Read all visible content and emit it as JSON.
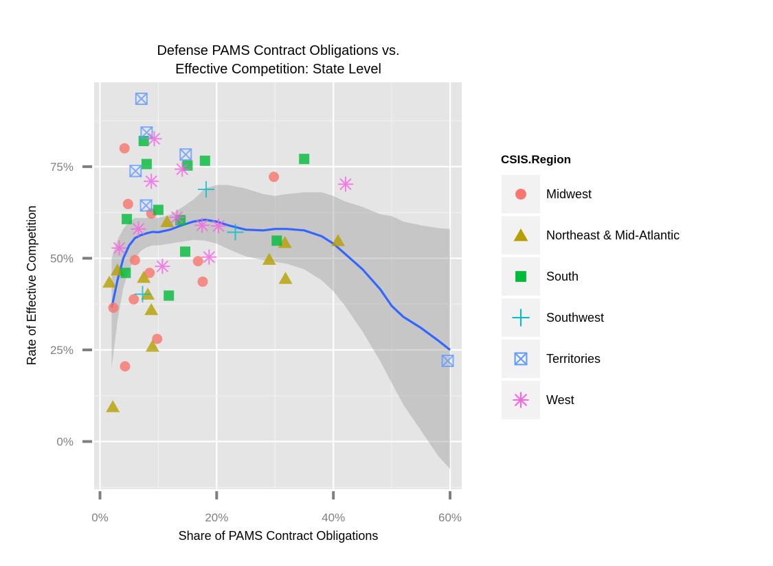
{
  "chart_data": {
    "type": "scatter",
    "title": "Defense PAMS Contract Obligations vs.\nEffective Competition: State Level",
    "title_lines": [
      "Defense PAMS Contract Obligations vs.",
      "Effective Competition: State Level"
    ],
    "xlabel": "Share of PAMS Contract Obligations",
    "ylabel": "Rate of Effective Competition",
    "xlim": [
      -0.01,
      0.62
    ],
    "ylim": [
      -0.13,
      0.98
    ],
    "x_ticks": [
      0,
      0.2,
      0.4,
      0.6
    ],
    "x_tick_labels": [
      "0%",
      "20%",
      "40%",
      "60%"
    ],
    "y_ticks": [
      0,
      0.25,
      0.5,
      0.75
    ],
    "y_tick_labels": [
      "0%",
      "25%",
      "50%",
      "75%"
    ],
    "grid": true,
    "legend_position": "right",
    "legend_title": "CSIS.Region",
    "series": [
      {
        "name": "Midwest",
        "color": "#F8766D",
        "marker": "circle",
        "points": [
          [
            0.023,
            0.365
          ],
          [
            0.042,
            0.8
          ],
          [
            0.048,
            0.648
          ],
          [
            0.058,
            0.388
          ],
          [
            0.06,
            0.495
          ],
          [
            0.043,
            0.205
          ],
          [
            0.085,
            0.46
          ],
          [
            0.088,
            0.622
          ],
          [
            0.098,
            0.28
          ],
          [
            0.168,
            0.492
          ],
          [
            0.176,
            0.436
          ],
          [
            0.298,
            0.722
          ]
        ]
      },
      {
        "name": "Northeast & Mid-Atlantic",
        "color": "#B79F00",
        "marker": "triangle",
        "points": [
          [
            0.016,
            0.435
          ],
          [
            0.03,
            0.468
          ],
          [
            0.022,
            0.095
          ],
          [
            0.075,
            0.448
          ],
          [
            0.082,
            0.402
          ],
          [
            0.088,
            0.36
          ],
          [
            0.09,
            0.26
          ],
          [
            0.115,
            0.6
          ],
          [
            0.29,
            0.497
          ],
          [
            0.317,
            0.543
          ],
          [
            0.318,
            0.445
          ],
          [
            0.408,
            0.548
          ]
        ]
      },
      {
        "name": "South",
        "color": "#00BA38",
        "marker": "square",
        "points": [
          [
            0.044,
            0.46
          ],
          [
            0.046,
            0.607
          ],
          [
            0.075,
            0.82
          ],
          [
            0.08,
            0.757
          ],
          [
            0.1,
            0.632
          ],
          [
            0.118,
            0.398
          ],
          [
            0.138,
            0.604
          ],
          [
            0.146,
            0.518
          ],
          [
            0.15,
            0.753
          ],
          [
            0.18,
            0.766
          ],
          [
            0.303,
            0.548
          ],
          [
            0.35,
            0.771
          ]
        ]
      },
      {
        "name": "Southwest",
        "color": "#00BFC4",
        "marker": "plus",
        "points": [
          [
            0.073,
            0.402
          ],
          [
            0.182,
            0.688
          ],
          [
            0.232,
            0.571
          ]
        ]
      },
      {
        "name": "Territories",
        "color": "#619CFF",
        "marker": "boxcross",
        "points": [
          [
            0.071,
            0.935
          ],
          [
            0.08,
            0.843
          ],
          [
            0.061,
            0.738
          ],
          [
            0.079,
            0.644
          ],
          [
            0.147,
            0.783
          ],
          [
            0.596,
            0.22
          ]
        ]
      },
      {
        "name": "West",
        "color": "#F564E3",
        "marker": "asterisk",
        "points": [
          [
            0.033,
            0.528
          ],
          [
            0.066,
            0.58
          ],
          [
            0.093,
            0.826
          ],
          [
            0.088,
            0.71
          ],
          [
            0.107,
            0.478
          ],
          [
            0.141,
            0.743
          ],
          [
            0.132,
            0.612
          ],
          [
            0.175,
            0.59
          ],
          [
            0.187,
            0.503
          ],
          [
            0.203,
            0.588
          ],
          [
            0.421,
            0.702
          ]
        ]
      }
    ],
    "smooth": {
      "color": "#3366FF",
      "band_color": "#999999",
      "x": [
        0.02,
        0.03,
        0.04,
        0.05,
        0.06,
        0.07,
        0.08,
        0.09,
        0.1,
        0.12,
        0.14,
        0.16,
        0.18,
        0.2,
        0.22,
        0.25,
        0.28,
        0.3,
        0.32,
        0.35,
        0.38,
        0.4,
        0.42,
        0.45,
        0.48,
        0.5,
        0.52,
        0.55,
        0.58,
        0.6
      ],
      "y": [
        0.365,
        0.44,
        0.5,
        0.535,
        0.555,
        0.563,
        0.568,
        0.572,
        0.571,
        0.578,
        0.59,
        0.6,
        0.605,
        0.6,
        0.59,
        0.578,
        0.576,
        0.58,
        0.58,
        0.576,
        0.56,
        0.54,
        0.512,
        0.47,
        0.416,
        0.37,
        0.34,
        0.31,
        0.275,
        0.25
      ],
      "lower": [
        0.2,
        0.33,
        0.42,
        0.47,
        0.5,
        0.52,
        0.53,
        0.535,
        0.535,
        0.54,
        0.545,
        0.55,
        0.548,
        0.54,
        0.525,
        0.505,
        0.495,
        0.49,
        0.485,
        0.47,
        0.44,
        0.41,
        0.37,
        0.3,
        0.22,
        0.16,
        0.1,
        0.03,
        -0.04,
        -0.075
      ],
      "upper": [
        0.5,
        0.55,
        0.58,
        0.6,
        0.61,
        0.61,
        0.61,
        0.612,
        0.61,
        0.618,
        0.638,
        0.66,
        0.69,
        0.7,
        0.7,
        0.69,
        0.675,
        0.67,
        0.675,
        0.68,
        0.68,
        0.67,
        0.655,
        0.64,
        0.62,
        0.615,
        0.6,
        0.59,
        0.582,
        0.58
      ]
    }
  }
}
